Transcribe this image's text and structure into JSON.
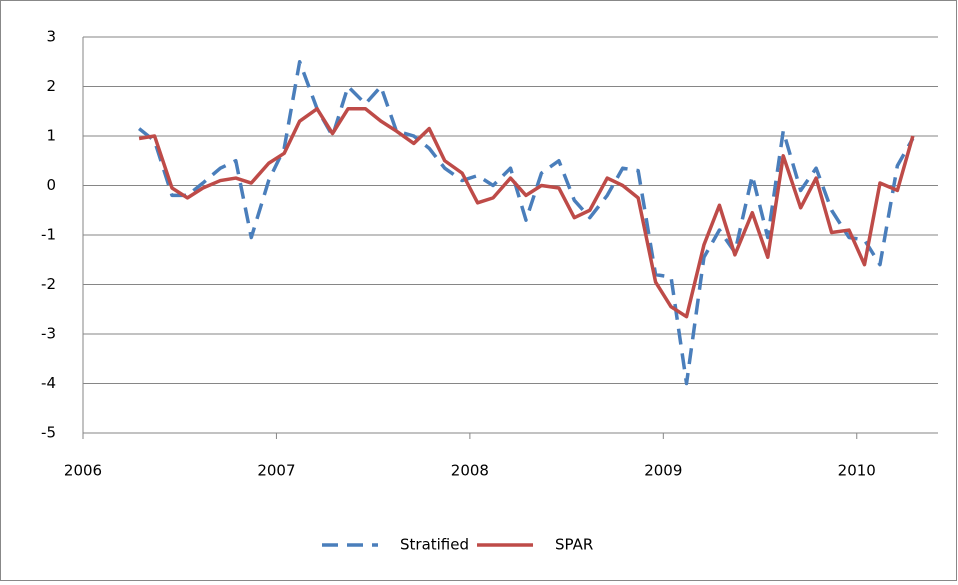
{
  "chart_data": {
    "type": "line",
    "x": [
      2006.29,
      2006.37,
      2006.46,
      2006.54,
      2006.62,
      2006.71,
      2006.79,
      2006.87,
      2006.96,
      2007.04,
      2007.12,
      2007.21,
      2007.29,
      2007.37,
      2007.46,
      2007.54,
      2007.62,
      2007.71,
      2007.79,
      2007.87,
      2007.96,
      2008.04,
      2008.12,
      2008.21,
      2008.29,
      2008.37,
      2008.46,
      2008.54,
      2008.62,
      2008.71,
      2008.79,
      2008.87,
      2008.96,
      2009.04,
      2009.12,
      2009.21,
      2009.29,
      2009.37,
      2009.46,
      2009.54,
      2009.62,
      2009.71,
      2009.79,
      2009.87,
      2009.96,
      2010.04,
      2010.12,
      2010.21,
      2010.29
    ],
    "series": [
      {
        "name": "Stratified",
        "color": "#4a7ebb",
        "dashed": true,
        "values": [
          1.15,
          0.9,
          -0.2,
          -0.2,
          0.05,
          0.35,
          0.5,
          -1.05,
          0.1,
          0.75,
          2.5,
          1.55,
          1.0,
          2.0,
          1.65,
          2.0,
          1.1,
          1.0,
          0.75,
          0.35,
          0.1,
          0.2,
          0.0,
          0.35,
          -0.7,
          0.25,
          0.5,
          -0.3,
          -0.65,
          -0.2,
          0.35,
          0.3,
          -1.8,
          -1.85,
          -4.0,
          -1.45,
          -0.9,
          -1.35,
          0.2,
          -1.05,
          1.1,
          -0.1,
          0.35,
          -0.5,
          -1.05,
          -1.1,
          -1.6,
          0.4,
          0.95
        ]
      },
      {
        "name": "SPAR",
        "color": "#be4b48",
        "dashed": false,
        "values": [
          0.95,
          1.0,
          -0.05,
          -0.25,
          -0.05,
          0.1,
          0.15,
          0.05,
          0.45,
          0.65,
          1.3,
          1.55,
          1.05,
          1.55,
          1.55,
          1.3,
          1.1,
          0.85,
          1.15,
          0.5,
          0.25,
          -0.35,
          -0.25,
          0.15,
          -0.2,
          0.0,
          -0.05,
          -0.65,
          -0.5,
          0.15,
          0.0,
          -0.25,
          -1.95,
          -2.45,
          -2.65,
          -1.2,
          -0.4,
          -1.4,
          -0.55,
          -1.45,
          0.6,
          -0.45,
          0.15,
          -0.95,
          -0.9,
          -1.6,
          0.05,
          -0.1,
          1.0
        ]
      }
    ],
    "xlim": [
      2006,
      2010.42
    ],
    "xticks": [
      2006,
      2007,
      2008,
      2009,
      2010
    ],
    "ylim": [
      -5,
      3
    ],
    "yticks": [
      -5,
      -4,
      -3,
      -2,
      -1,
      0,
      1,
      2,
      3
    ],
    "grid": true,
    "legend": "bottom"
  }
}
